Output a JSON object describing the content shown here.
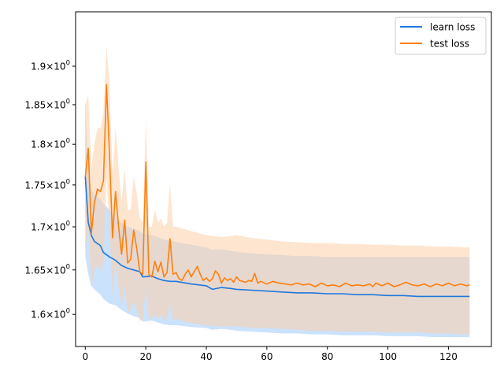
{
  "chart_data": {
    "type": "line",
    "title": "",
    "xlabel": "",
    "ylabel": "",
    "yscale": "log",
    "xlim": [
      -3.2,
      134.2
    ],
    "ylim": [
      1.5648,
      1.9729
    ],
    "x_ticks": [
      0,
      20,
      40,
      60,
      80,
      100,
      120
    ],
    "x_tick_labels": [
      "0",
      "20",
      "40",
      "60",
      "80",
      "100",
      "120"
    ],
    "y_ticks": [
      {
        "value": 1.6,
        "base": "1.6",
        "mult": "×",
        "pow": "10",
        "exp": "0"
      },
      {
        "value": 1.65,
        "base": "1.65",
        "mult": "×",
        "pow": "10",
        "exp": "0"
      },
      {
        "value": 1.7,
        "base": "1.7",
        "mult": "×",
        "pow": "10",
        "exp": "0"
      },
      {
        "value": 1.75,
        "base": "1.75",
        "mult": "×",
        "pow": "10",
        "exp": "0"
      },
      {
        "value": 1.8,
        "base": "1.8",
        "mult": "×",
        "pow": "10",
        "exp": "0"
      },
      {
        "value": 1.85,
        "base": "1.85",
        "mult": "×",
        "pow": "10",
        "exp": "0"
      },
      {
        "value": 1.9,
        "base": "1.9",
        "mult": "×",
        "pow": "10",
        "exp": "0"
      }
    ],
    "grid": false,
    "legend": {
      "placement": "top-right"
    },
    "series": [
      {
        "name": "learn loss",
        "color": "#1f77e0",
        "band_color": "#a9cffa",
        "points": [
          [
            0,
            1.76
          ],
          [
            1,
            1.705
          ],
          [
            2,
            1.69
          ],
          [
            3,
            1.683
          ],
          [
            5,
            1.678
          ],
          [
            6,
            1.67
          ],
          [
            8,
            1.665
          ],
          [
            10,
            1.661
          ],
          [
            12,
            1.655
          ],
          [
            14,
            1.652
          ],
          [
            16,
            1.65
          ],
          [
            18,
            1.648
          ],
          [
            19,
            1.642
          ],
          [
            22,
            1.643
          ],
          [
            24,
            1.64
          ],
          [
            26,
            1.638
          ],
          [
            28,
            1.637
          ],
          [
            30,
            1.637
          ],
          [
            35,
            1.634
          ],
          [
            40,
            1.632
          ],
          [
            42,
            1.628
          ],
          [
            45,
            1.63
          ],
          [
            48,
            1.629
          ],
          [
            50,
            1.628
          ],
          [
            55,
            1.627
          ],
          [
            60,
            1.626
          ],
          [
            65,
            1.625
          ],
          [
            70,
            1.624
          ],
          [
            75,
            1.624
          ],
          [
            80,
            1.623
          ],
          [
            85,
            1.623
          ],
          [
            90,
            1.622
          ],
          [
            95,
            1.622
          ],
          [
            100,
            1.621
          ],
          [
            105,
            1.621
          ],
          [
            110,
            1.62
          ],
          [
            115,
            1.62
          ],
          [
            120,
            1.62
          ],
          [
            125,
            1.62
          ],
          [
            127,
            1.62
          ]
        ],
        "band": [
          [
            0,
            1.665,
            1.853
          ],
          [
            1,
            1.645,
            1.76
          ],
          [
            2,
            1.632,
            1.745
          ],
          [
            3,
            1.628,
            1.738
          ],
          [
            5,
            1.622,
            1.733
          ],
          [
            6,
            1.617,
            1.728
          ],
          [
            8,
            1.612,
            1.72
          ],
          [
            10,
            1.61,
            1.71
          ],
          [
            12,
            1.605,
            1.705
          ],
          [
            14,
            1.601,
            1.7
          ],
          [
            16,
            1.598,
            1.698
          ],
          [
            18,
            1.596,
            1.695
          ],
          [
            19,
            1.592,
            1.692
          ],
          [
            22,
            1.593,
            1.69
          ],
          [
            24,
            1.591,
            1.688
          ],
          [
            26,
            1.589,
            1.685
          ],
          [
            28,
            1.588,
            1.684
          ],
          [
            30,
            1.588,
            1.682
          ],
          [
            35,
            1.586,
            1.679
          ],
          [
            40,
            1.585,
            1.676
          ],
          [
            42,
            1.583,
            1.673
          ],
          [
            45,
            1.584,
            1.674
          ],
          [
            48,
            1.583,
            1.672
          ],
          [
            50,
            1.582,
            1.671
          ],
          [
            55,
            1.581,
            1.669
          ],
          [
            60,
            1.58,
            1.668
          ],
          [
            65,
            1.579,
            1.667
          ],
          [
            70,
            1.579,
            1.666
          ],
          [
            75,
            1.578,
            1.666
          ],
          [
            80,
            1.578,
            1.665
          ],
          [
            85,
            1.577,
            1.665
          ],
          [
            90,
            1.577,
            1.665
          ],
          [
            95,
            1.577,
            1.665
          ],
          [
            100,
            1.576,
            1.665
          ],
          [
            105,
            1.576,
            1.665
          ],
          [
            110,
            1.576,
            1.665
          ],
          [
            115,
            1.575,
            1.665
          ],
          [
            120,
            1.575,
            1.665
          ],
          [
            125,
            1.575,
            1.665
          ],
          [
            127,
            1.575,
            1.665
          ]
        ]
      },
      {
        "name": "test loss",
        "color": "#ff7f0e",
        "band_color": "#fdd0a8",
        "points": [
          [
            0,
            1.76
          ],
          [
            1,
            1.795
          ],
          [
            2,
            1.692
          ],
          [
            3,
            1.728
          ],
          [
            4,
            1.745
          ],
          [
            5,
            1.742
          ],
          [
            6,
            1.755
          ],
          [
            7,
            1.876
          ],
          [
            8,
            1.79
          ],
          [
            9,
            1.687
          ],
          [
            10,
            1.742
          ],
          [
            11,
            1.7
          ],
          [
            12,
            1.668
          ],
          [
            13,
            1.708
          ],
          [
            14,
            1.658
          ],
          [
            15,
            1.662
          ],
          [
            16,
            1.696
          ],
          [
            17,
            1.675
          ],
          [
            18,
            1.648
          ],
          [
            19,
            1.645
          ],
          [
            20,
            1.778
          ],
          [
            21,
            1.645
          ],
          [
            22,
            1.642
          ],
          [
            23,
            1.66
          ],
          [
            24,
            1.648
          ],
          [
            25,
            1.659
          ],
          [
            26,
            1.642
          ],
          [
            27,
            1.647
          ],
          [
            28,
            1.686
          ],
          [
            29,
            1.645
          ],
          [
            30,
            1.647
          ],
          [
            31,
            1.64
          ],
          [
            32,
            1.638
          ],
          [
            33,
            1.645
          ],
          [
            34,
            1.65
          ],
          [
            35,
            1.642
          ],
          [
            36,
            1.648
          ],
          [
            37,
            1.654
          ],
          [
            38,
            1.645
          ],
          [
            39,
            1.638
          ],
          [
            40,
            1.641
          ],
          [
            41,
            1.637
          ],
          [
            42,
            1.64
          ],
          [
            43,
            1.649
          ],
          [
            44,
            1.645
          ],
          [
            45,
            1.635
          ],
          [
            46,
            1.641
          ],
          [
            47,
            1.638
          ],
          [
            48,
            1.64
          ],
          [
            49,
            1.636
          ],
          [
            50,
            1.642
          ],
          [
            51,
            1.638
          ],
          [
            52,
            1.637
          ],
          [
            53,
            1.636
          ],
          [
            54,
            1.638
          ],
          [
            55,
            1.637
          ],
          [
            56,
            1.646
          ],
          [
            57,
            1.635
          ],
          [
            58,
            1.637
          ],
          [
            60,
            1.634
          ],
          [
            62,
            1.637
          ],
          [
            64,
            1.635
          ],
          [
            66,
            1.634
          ],
          [
            68,
            1.633
          ],
          [
            70,
            1.635
          ],
          [
            72,
            1.633
          ],
          [
            74,
            1.634
          ],
          [
            76,
            1.631
          ],
          [
            78,
            1.635
          ],
          [
            80,
            1.632
          ],
          [
            82,
            1.633
          ],
          [
            84,
            1.631
          ],
          [
            86,
            1.635
          ],
          [
            88,
            1.632
          ],
          [
            90,
            1.633
          ],
          [
            92,
            1.632
          ],
          [
            94,
            1.634
          ],
          [
            95,
            1.631
          ],
          [
            96,
            1.635
          ],
          [
            98,
            1.632
          ],
          [
            100,
            1.635
          ],
          [
            102,
            1.631
          ],
          [
            104,
            1.633
          ],
          [
            106,
            1.636
          ],
          [
            108,
            1.633
          ],
          [
            110,
            1.632
          ],
          [
            112,
            1.634
          ],
          [
            114,
            1.631
          ],
          [
            116,
            1.634
          ],
          [
            118,
            1.632
          ],
          [
            120,
            1.635
          ],
          [
            122,
            1.632
          ],
          [
            124,
            1.634
          ],
          [
            126,
            1.632
          ],
          [
            127,
            1.633
          ]
        ],
        "band": [
          [
            0,
            1.67,
            1.85
          ],
          [
            1,
            1.7,
            1.862
          ],
          [
            2,
            1.63,
            1.77
          ],
          [
            3,
            1.65,
            1.8
          ],
          [
            4,
            1.655,
            1.82
          ],
          [
            5,
            1.65,
            1.82
          ],
          [
            6,
            1.66,
            1.84
          ],
          [
            7,
            1.76,
            1.925
          ],
          [
            8,
            1.7,
            1.88
          ],
          [
            9,
            1.62,
            1.76
          ],
          [
            10,
            1.66,
            1.82
          ],
          [
            11,
            1.63,
            1.77
          ],
          [
            12,
            1.61,
            1.73
          ],
          [
            13,
            1.63,
            1.77
          ],
          [
            14,
            1.602,
            1.72
          ],
          [
            15,
            1.605,
            1.72
          ],
          [
            16,
            1.615,
            1.76
          ],
          [
            17,
            1.605,
            1.74
          ],
          [
            18,
            1.592,
            1.71
          ],
          [
            19,
            1.595,
            1.705
          ],
          [
            20,
            1.63,
            1.83
          ],
          [
            21,
            1.595,
            1.7
          ],
          [
            22,
            1.595,
            1.7
          ],
          [
            23,
            1.6,
            1.72
          ],
          [
            24,
            1.595,
            1.705
          ],
          [
            25,
            1.6,
            1.71
          ],
          [
            26,
            1.593,
            1.7
          ],
          [
            27,
            1.595,
            1.705
          ],
          [
            28,
            1.612,
            1.752
          ],
          [
            29,
            1.593,
            1.7
          ],
          [
            30,
            1.595,
            1.7
          ],
          [
            35,
            1.59,
            1.695
          ],
          [
            40,
            1.588,
            1.69
          ],
          [
            45,
            1.587,
            1.688
          ],
          [
            50,
            1.587,
            1.69
          ],
          [
            55,
            1.585,
            1.687
          ],
          [
            60,
            1.585,
            1.685
          ],
          [
            65,
            1.584,
            1.683
          ],
          [
            70,
            1.583,
            1.682
          ],
          [
            75,
            1.582,
            1.681
          ],
          [
            80,
            1.582,
            1.681
          ],
          [
            85,
            1.581,
            1.68
          ],
          [
            90,
            1.581,
            1.68
          ],
          [
            95,
            1.581,
            1.679
          ],
          [
            100,
            1.58,
            1.679
          ],
          [
            105,
            1.58,
            1.678
          ],
          [
            110,
            1.58,
            1.678
          ],
          [
            115,
            1.579,
            1.677
          ],
          [
            120,
            1.579,
            1.677
          ],
          [
            125,
            1.578,
            1.676
          ],
          [
            127,
            1.578,
            1.676
          ]
        ]
      }
    ]
  }
}
